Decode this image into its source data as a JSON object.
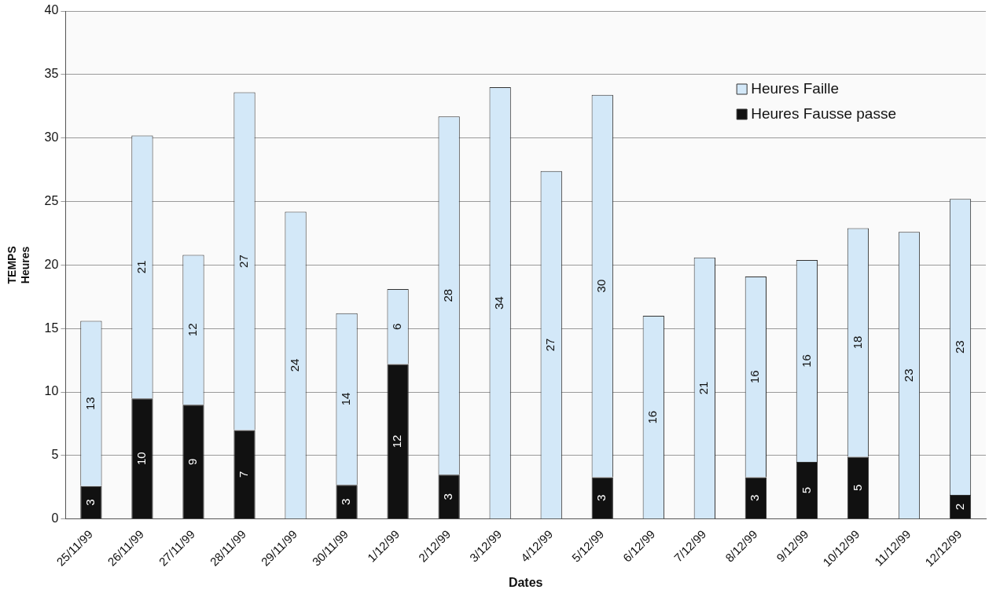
{
  "chart_data": {
    "type": "bar",
    "stacked": true,
    "xlabel": "Dates",
    "ylabel": "TEMPS Heures",
    "categories": [
      "25/11/99",
      "26/11/99",
      "27/11/99",
      "28/11/99",
      "29/11/99",
      "30/11/99",
      "1/12/99",
      "2/12/99",
      "3/12/99",
      "4/12/99",
      "5/12/99",
      "6/12/99",
      "7/12/99",
      "8/12/99",
      "9/12/99",
      "10/12/99",
      "11/12/99",
      "12/12/99"
    ],
    "series": [
      {
        "name": "Heures Fausse passe",
        "color": "#111111",
        "values": [
          2.6,
          9.5,
          9.0,
          7.0,
          0,
          2.7,
          12.2,
          3.5,
          0,
          0,
          3.3,
          0,
          0,
          3.3,
          4.5,
          4.9,
          0,
          1.9
        ],
        "value_labels": [
          "3",
          "10",
          "9",
          "7",
          null,
          "3",
          "12",
          "3",
          null,
          null,
          "3",
          null,
          null,
          "3",
          "5",
          "5",
          null,
          "2"
        ]
      },
      {
        "name": "Heures Faille",
        "color": "#d3e8f8",
        "values": [
          13.0,
          20.7,
          11.8,
          26.6,
          24.2,
          13.5,
          5.9,
          28.2,
          34.0,
          27.4,
          30.1,
          16.0,
          20.6,
          15.8,
          15.9,
          18.0,
          22.6,
          23.3
        ],
        "value_labels": [
          "13",
          "21",
          "12",
          "27",
          "24",
          "14",
          "6",
          "28",
          "34",
          "27",
          "30",
          "16",
          "21",
          "16",
          "16",
          "18",
          "23",
          "23"
        ]
      }
    ],
    "ylim": [
      0,
      40
    ],
    "yticks": [
      0,
      5,
      10,
      15,
      20,
      25,
      30,
      35,
      40
    ],
    "grid": "y",
    "legend": "top right"
  }
}
